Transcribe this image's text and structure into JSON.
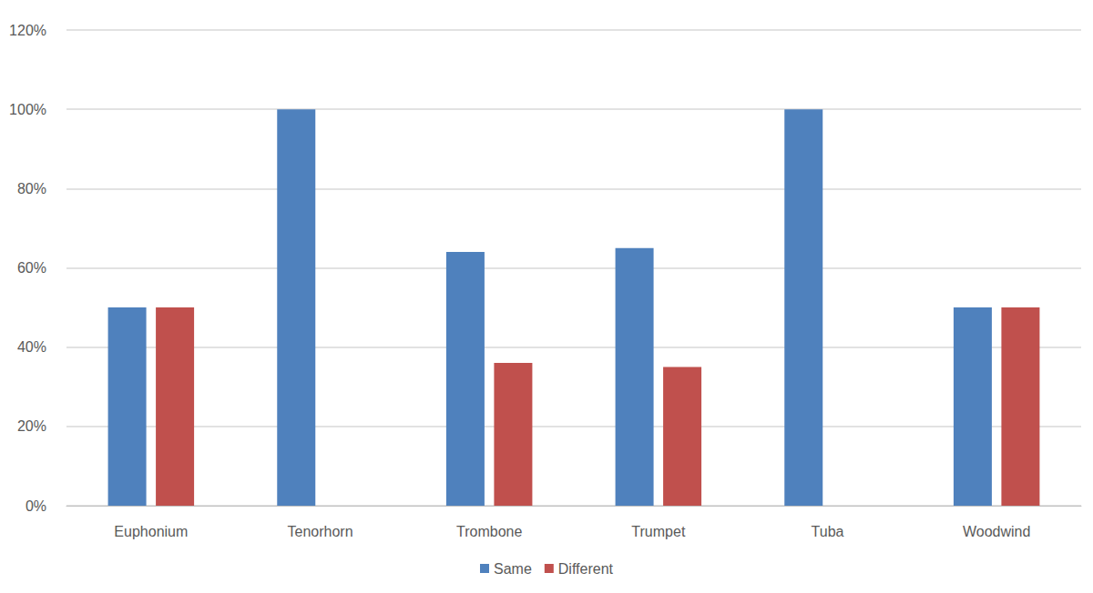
{
  "chart_data": {
    "type": "bar",
    "categories": [
      "Euphonium",
      "Tenorhorn",
      "Trombone",
      "Trumpet",
      "Tuba",
      "Woodwind"
    ],
    "series": [
      {
        "name": "Same",
        "color": "#4f81bd",
        "values": [
          50,
          100,
          64,
          65,
          100,
          50
        ]
      },
      {
        "name": "Different",
        "color": "#c0504d",
        "values": [
          50,
          0,
          36,
          35,
          0,
          50
        ]
      }
    ],
    "ylim": [
      0,
      120
    ],
    "yticks": [
      {
        "value": 0,
        "label": "0%"
      },
      {
        "value": 20,
        "label": "20%"
      },
      {
        "value": 40,
        "label": "40%"
      },
      {
        "value": 60,
        "label": "60%"
      },
      {
        "value": 80,
        "label": "80%"
      },
      {
        "value": 100,
        "label": "100%"
      },
      {
        "value": 120,
        "label": "120%"
      }
    ],
    "grid": true,
    "legend": "bottom"
  }
}
